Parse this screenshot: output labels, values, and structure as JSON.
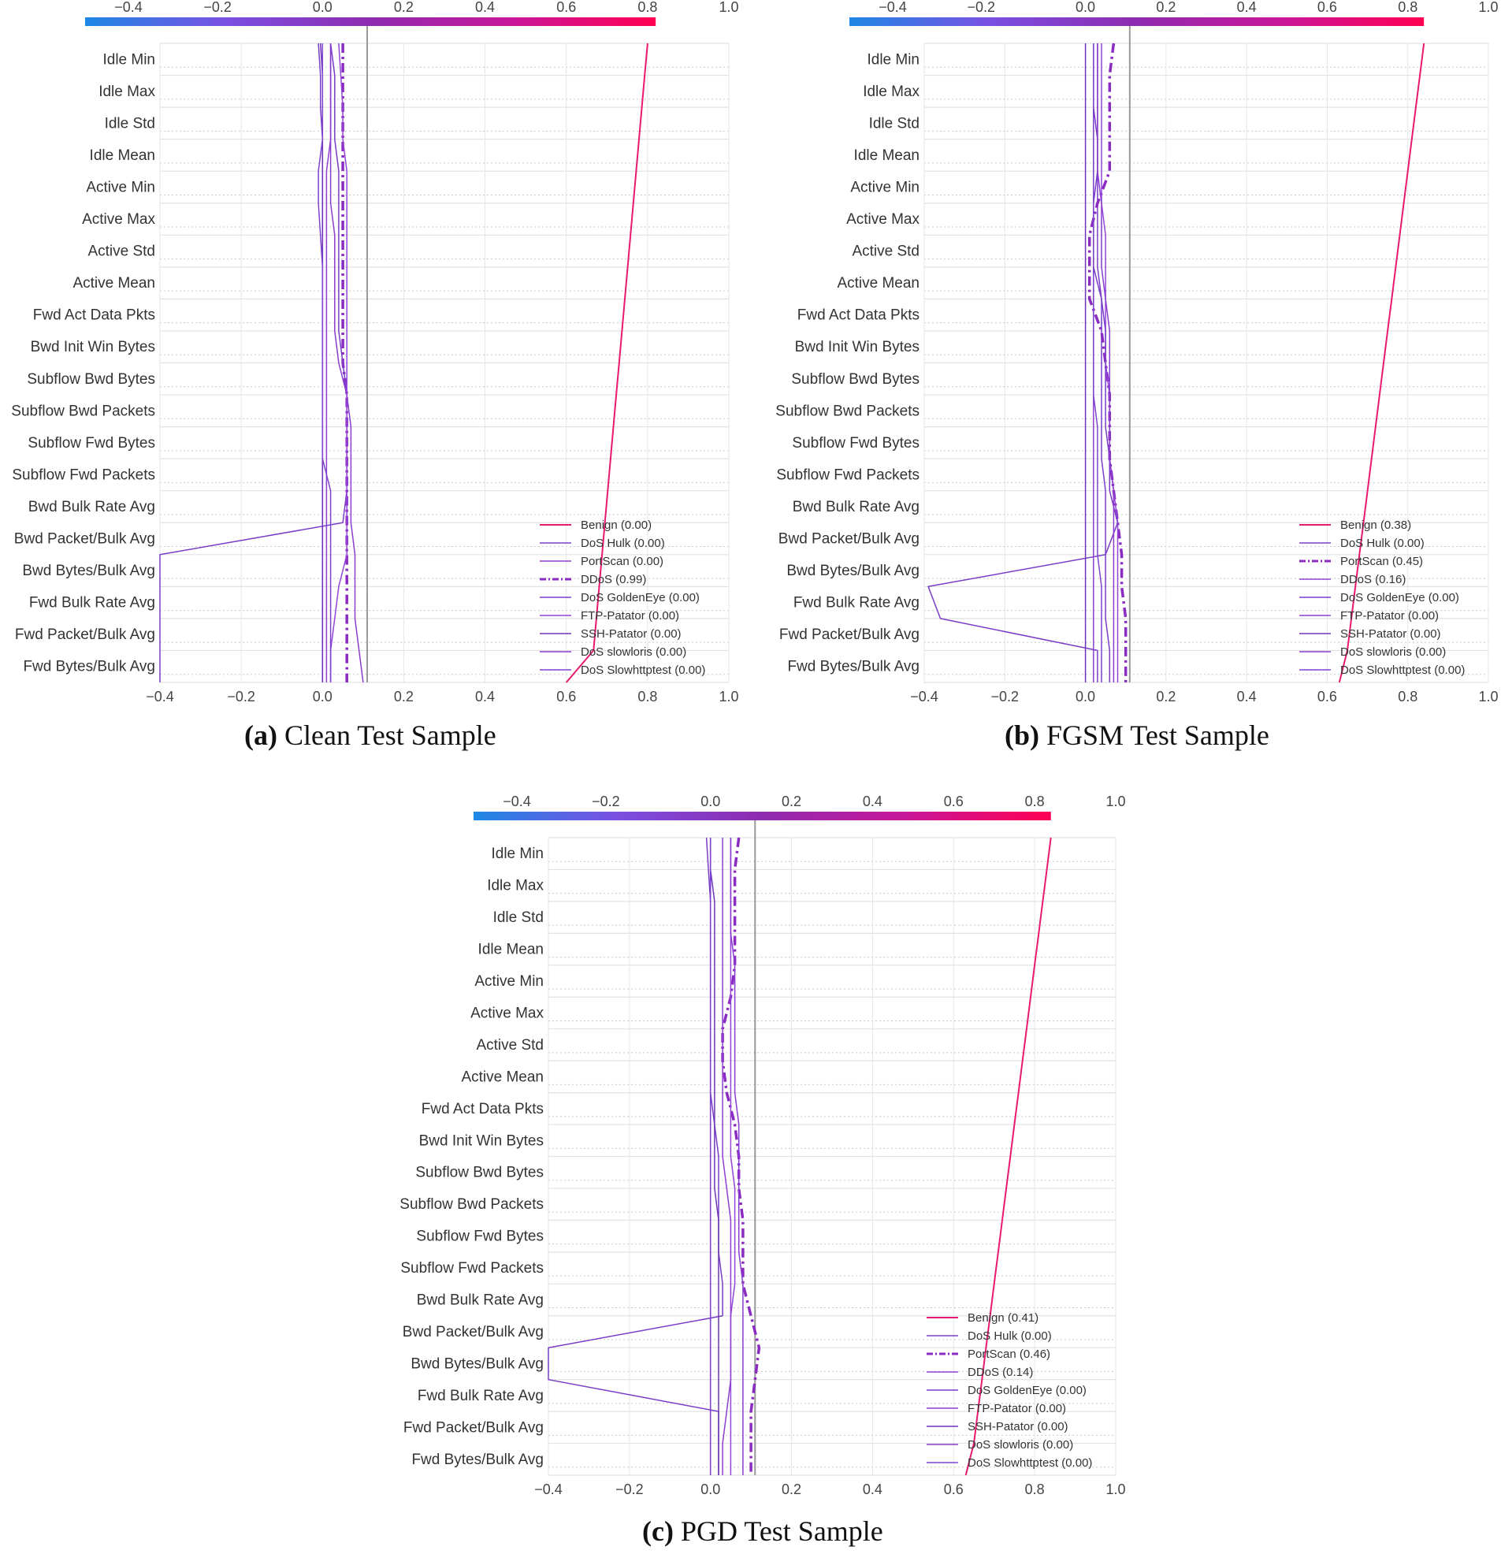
{
  "colors": {
    "colorbar": [
      "#1E88E5",
      "#7B4FE0",
      "#8E2BB0",
      "#C81699",
      "#FF0052"
    ],
    "line_main": "#7A3DC8",
    "line_benign": "#E8196F",
    "base_line": "#999999",
    "grid": "#DDDDDD"
  },
  "panels": [
    {
      "caption_label": "(a)",
      "caption_text": "Clean Test Sample"
    },
    {
      "caption_label": "(b)",
      "caption_text": "FGSM Test Sample"
    },
    {
      "caption_label": "(c)",
      "caption_text": "PGD Test Sample"
    }
  ],
  "chart_data": [
    {
      "type": "line",
      "title": "",
      "xlabel": "",
      "ylabel": "",
      "xlim": [
        -0.4,
        1.0
      ],
      "xticks": [
        "−0.4",
        "−0.2",
        "0.0",
        "0.2",
        "0.4",
        "0.6",
        "0.8",
        "1.0"
      ],
      "base_value": 0.11,
      "colorbar_range": [
        -0.4,
        0.82
      ],
      "features": [
        "Idle Min",
        "Idle Max",
        "Idle Std",
        "Idle Mean",
        "Active Min",
        "Active Max",
        "Active Std",
        "Active Mean",
        "Fwd Act Data Pkts",
        "Bwd Init Win Bytes",
        "Subflow Bwd Bytes",
        "Subflow Bwd Packets",
        "Subflow Fwd Bytes",
        "Subflow Fwd Packets",
        "Bwd Bulk Rate Avg",
        "Bwd Packet/Bulk Avg",
        "Bwd Bytes/Bulk Avg",
        "Fwd Bulk Rate Avg",
        "Fwd Packet/Bulk Avg",
        "Fwd Bytes/Bulk Avg"
      ],
      "legend_position": "lower-right",
      "series": [
        {
          "name": "Benign (0.00)",
          "color": "#E8196F",
          "dash": "",
          "width": 2,
          "values": [
            0.8,
            0.793,
            0.786,
            0.779,
            0.772,
            0.765,
            0.758,
            0.751,
            0.744,
            0.737,
            0.73,
            0.723,
            0.716,
            0.709,
            0.702,
            0.695,
            0.688,
            0.681,
            0.674,
            0.667,
            0.6
          ]
        },
        {
          "name": "DoS Hulk (0.00)",
          "color": "#7A3DC8",
          "dash": "",
          "width": 1.5,
          "values": [
            -0.01,
            -0.005,
            -0.005,
            0.0,
            0.0,
            0.0,
            0.0,
            0.0,
            0.0,
            0.0,
            0.0,
            0.0,
            0.0,
            0.0,
            0.0,
            0.0,
            0.0,
            0.0,
            0.0,
            0.0,
            0.0
          ]
        },
        {
          "name": "PortScan (0.00)",
          "color": "#8E3FD0",
          "dash": "",
          "width": 1.5,
          "values": [
            0.02,
            0.02,
            0.02,
            0.02,
            0.01,
            0.01,
            0.01,
            0.01,
            0.01,
            0.01,
            0.01,
            0.01,
            0.01,
            0.01,
            0.01,
            0.01,
            0.01,
            0.01,
            0.01,
            0.01,
            0.01
          ]
        },
        {
          "name": "DDoS (0.99)",
          "color": "#8A2BC2",
          "dash": "12,5,3,5",
          "width": 3.5,
          "values": [
            0.05,
            0.05,
            0.05,
            0.05,
            0.05,
            0.05,
            0.05,
            0.05,
            0.05,
            0.05,
            0.05,
            0.06,
            0.06,
            0.06,
            0.06,
            0.06,
            0.06,
            0.06,
            0.06,
            0.06,
            0.06
          ]
        },
        {
          "name": "DoS GoldenEye (0.00)",
          "color": "#7A3DC8",
          "dash": "",
          "width": 1.5,
          "values": [
            0.02,
            0.03,
            0.03,
            0.03,
            0.04,
            0.04,
            0.04,
            0.04,
            0.04,
            0.04,
            0.05,
            0.06,
            0.06,
            0.06,
            0.06,
            0.05,
            -0.4,
            -0.4,
            -0.4,
            -0.4,
            -0.4
          ]
        },
        {
          "name": "FTP-Patator (0.00)",
          "color": "#9445D8",
          "dash": "",
          "width": 1.5,
          "values": [
            0.04,
            0.045,
            0.05,
            0.05,
            0.06,
            0.06,
            0.06,
            0.06,
            0.06,
            0.06,
            0.06,
            0.06,
            0.06,
            0.06,
            0.06,
            0.06,
            0.06,
            0.04,
            0.03,
            0.02,
            0.02
          ]
        },
        {
          "name": "SSH-Patator (0.00)",
          "color": "#7035B8",
          "dash": "",
          "width": 1.5,
          "values": [
            -0.005,
            0.0,
            0.0,
            0.0,
            0.0,
            0.0,
            0.0,
            0.0,
            0.0,
            0.0,
            0.0,
            0.0,
            0.0,
            0.0,
            0.0,
            0.0,
            0.0,
            0.0,
            0.0,
            0.0,
            0.0
          ]
        },
        {
          "name": "DoS slowloris (0.00)",
          "color": "#8A3CD0",
          "dash": "",
          "width": 1.5,
          "values": [
            0.02,
            0.02,
            0.02,
            0.02,
            0.02,
            0.02,
            0.03,
            0.03,
            0.03,
            0.03,
            0.04,
            0.06,
            0.07,
            0.07,
            0.07,
            0.07,
            0.08,
            0.08,
            0.08,
            0.09,
            0.1
          ]
        },
        {
          "name": "DoS Slowhttptest (0.00)",
          "color": "#7E44D0",
          "dash": "",
          "width": 1.5,
          "values": [
            0.0,
            0.0,
            0.0,
            0.0,
            -0.01,
            -0.01,
            -0.005,
            0.0,
            0.0,
            0.0,
            0.0,
            0.0,
            0.0,
            0.0,
            0.02,
            0.02,
            0.02,
            0.02,
            0.02,
            0.02,
            0.02
          ]
        }
      ]
    },
    {
      "type": "line",
      "title": "",
      "xlabel": "",
      "ylabel": "",
      "xlim": [
        -0.4,
        1.0
      ],
      "xticks": [
        "−0.4",
        "−0.2",
        "0.0",
        "0.2",
        "0.4",
        "0.6",
        "0.8",
        "1.0"
      ],
      "base_value": 0.11,
      "colorbar_range": [
        -0.4,
        0.84
      ],
      "features": [
        "Idle Min",
        "Idle Max",
        "Idle Std",
        "Idle Mean",
        "Active Min",
        "Active Max",
        "Active Std",
        "Active Mean",
        "Fwd Act Data Pkts",
        "Bwd Init Win Bytes",
        "Subflow Bwd Bytes",
        "Subflow Bwd Packets",
        "Subflow Fwd Bytes",
        "Subflow Fwd Packets",
        "Bwd Bulk Rate Avg",
        "Bwd Packet/Bulk Avg",
        "Bwd Bytes/Bulk Avg",
        "Fwd Bulk Rate Avg",
        "Fwd Packet/Bulk Avg",
        "Fwd Bytes/Bulk Avg"
      ],
      "legend_position": "lower-right",
      "series": [
        {
          "name": "Benign (0.38)",
          "color": "#E8196F",
          "dash": "",
          "width": 2,
          "values": [
            0.84,
            0.83,
            0.82,
            0.81,
            0.8,
            0.79,
            0.78,
            0.77,
            0.76,
            0.75,
            0.74,
            0.73,
            0.72,
            0.71,
            0.7,
            0.69,
            0.68,
            0.67,
            0.66,
            0.65,
            0.63
          ]
        },
        {
          "name": "DoS Hulk (0.00)",
          "color": "#7A3DC8",
          "dash": "",
          "width": 1.5,
          "values": [
            0.02,
            0.02,
            0.02,
            0.03,
            0.03,
            0.03,
            0.03,
            0.03,
            0.04,
            0.04,
            0.04,
            0.04,
            0.04,
            0.04,
            0.05,
            0.05,
            0.05,
            0.05,
            0.05,
            0.06,
            0.06
          ]
        },
        {
          "name": "PortScan (0.45)",
          "color": "#8A2BC2",
          "dash": "12,5,3,5",
          "width": 3.5,
          "values": [
            0.07,
            0.06,
            0.06,
            0.06,
            0.06,
            0.03,
            0.01,
            0.01,
            0.01,
            0.04,
            0.05,
            0.06,
            0.06,
            0.06,
            0.07,
            0.08,
            0.09,
            0.09,
            0.1,
            0.1,
            0.1
          ]
        },
        {
          "name": "DDoS (0.16)",
          "color": "#9445D8",
          "dash": "",
          "width": 1.5,
          "values": [
            0.04,
            0.04,
            0.04,
            0.04,
            0.04,
            0.04,
            0.05,
            0.05,
            0.05,
            0.05,
            0.05,
            0.06,
            0.06,
            0.06,
            0.07,
            0.08,
            0.08,
            0.08,
            0.08,
            0.08,
            0.08
          ]
        },
        {
          "name": "DoS GoldenEye (0.00)",
          "color": "#7A3DC8",
          "dash": "",
          "width": 1.5,
          "values": [
            0.03,
            0.03,
            0.03,
            0.03,
            0.03,
            0.02,
            0.02,
            0.02,
            0.04,
            0.05,
            0.05,
            0.05,
            0.05,
            0.06,
            0.06,
            0.08,
            0.05,
            -0.39,
            -0.36,
            0.03,
            0.03
          ]
        },
        {
          "name": "FTP-Patator (0.00)",
          "color": "#8E3FD0",
          "dash": "",
          "width": 1.5,
          "values": [
            0.02,
            0.02,
            0.02,
            0.02,
            0.02,
            0.02,
            0.02,
            0.02,
            0.02,
            0.02,
            0.02,
            0.02,
            0.02,
            0.02,
            0.02,
            0.02,
            0.02,
            0.02,
            0.02,
            0.02,
            0.02
          ]
        },
        {
          "name": "SSH-Patator (0.00)",
          "color": "#7035B8",
          "dash": "",
          "width": 1.5,
          "values": [
            0.0,
            0.0,
            0.0,
            0.0,
            0.0,
            0.0,
            0.0,
            0.0,
            0.0,
            0.0,
            0.0,
            0.0,
            0.0,
            0.0,
            0.0,
            0.0,
            0.0,
            0.0,
            0.0,
            0.0,
            0.0
          ]
        },
        {
          "name": "DoS slowloris (0.00)",
          "color": "#8A3CD0",
          "dash": "",
          "width": 1.5,
          "values": [
            0.03,
            0.03,
            0.03,
            0.03,
            0.03,
            0.04,
            0.04,
            0.04,
            0.05,
            0.06,
            0.06,
            0.06,
            0.06,
            0.06,
            0.07,
            0.07,
            0.07,
            0.07,
            0.07,
            0.07,
            0.07
          ]
        },
        {
          "name": "DoS Slowhttptest (0.00)",
          "color": "#7E44D0",
          "dash": "",
          "width": 1.5,
          "values": [
            0.02,
            0.02,
            0.02,
            0.02,
            0.02,
            0.02,
            0.02,
            0.02,
            0.02,
            0.02,
            0.02,
            0.02,
            0.03,
            0.03,
            0.03,
            0.03,
            0.03,
            0.04,
            0.04,
            0.04,
            0.04
          ]
        }
      ]
    },
    {
      "type": "line",
      "title": "",
      "xlabel": "",
      "ylabel": "",
      "xlim": [
        -0.4,
        1.0
      ],
      "xticks": [
        "−0.4",
        "−0.2",
        "0.0",
        "0.2",
        "0.4",
        "0.6",
        "0.8",
        "1.0"
      ],
      "base_value": 0.11,
      "colorbar_range": [
        -0.4,
        0.84
      ],
      "features": [
        "Idle Min",
        "Idle Max",
        "Idle Std",
        "Idle Mean",
        "Active Min",
        "Active Max",
        "Active Std",
        "Active Mean",
        "Fwd Act Data Pkts",
        "Bwd Init Win Bytes",
        "Subflow Bwd Bytes",
        "Subflow Bwd Packets",
        "Subflow Fwd Bytes",
        "Subflow Fwd Packets",
        "Bwd Bulk Rate Avg",
        "Bwd Packet/Bulk Avg",
        "Bwd Bytes/Bulk Avg",
        "Fwd Bulk Rate Avg",
        "Fwd Packet/Bulk Avg",
        "Fwd Bytes/Bulk Avg"
      ],
      "legend_position": "lower-right",
      "series": [
        {
          "name": "Benign (0.41)",
          "color": "#E8196F",
          "dash": "",
          "width": 2,
          "values": [
            0.84,
            0.83,
            0.82,
            0.81,
            0.8,
            0.79,
            0.78,
            0.77,
            0.76,
            0.75,
            0.74,
            0.73,
            0.72,
            0.71,
            0.7,
            0.69,
            0.68,
            0.67,
            0.66,
            0.65,
            0.63
          ]
        },
        {
          "name": "DoS Hulk (0.00)",
          "color": "#7A3DC8",
          "dash": "",
          "width": 1.5,
          "values": [
            -0.01,
            -0.005,
            0.0,
            0.0,
            0.0,
            0.0,
            0.0,
            0.0,
            0.0,
            0.0,
            0.0,
            0.0,
            0.0,
            0.0,
            0.0,
            0.0,
            0.0,
            0.0,
            0.0,
            0.0,
            0.0
          ]
        },
        {
          "name": "PortScan (0.46)",
          "color": "#8A2BC2",
          "dash": "12,5,3,5",
          "width": 3.5,
          "values": [
            0.07,
            0.06,
            0.06,
            0.06,
            0.06,
            0.05,
            0.03,
            0.03,
            0.04,
            0.06,
            0.07,
            0.07,
            0.08,
            0.08,
            0.08,
            0.1,
            0.12,
            0.11,
            0.1,
            0.1,
            0.1
          ]
        },
        {
          "name": "DDoS (0.14)",
          "color": "#9445D8",
          "dash": "",
          "width": 1.5,
          "values": [
            0.05,
            0.05,
            0.05,
            0.05,
            0.05,
            0.05,
            0.05,
            0.05,
            0.05,
            0.05,
            0.05,
            0.06,
            0.06,
            0.06,
            0.06,
            0.05,
            0.05,
            0.05,
            0.05,
            0.05,
            0.05
          ]
        },
        {
          "name": "DoS GoldenEye (0.00)",
          "color": "#7A3DC8",
          "dash": "",
          "width": 1.5,
          "values": [
            0.0,
            0.0,
            0.0,
            0.0,
            0.0,
            0.0,
            0.0,
            0.0,
            0.0,
            0.01,
            0.02,
            0.02,
            0.02,
            0.02,
            0.03,
            0.03,
            -0.4,
            -0.4,
            0.02,
            0.02,
            0.02
          ]
        },
        {
          "name": "FTP-Patator (0.00)",
          "color": "#8E3FD0",
          "dash": "",
          "width": 1.5,
          "values": [
            0.03,
            0.03,
            0.03,
            0.03,
            0.03,
            0.03,
            0.03,
            0.03,
            0.03,
            0.03,
            0.03,
            0.04,
            0.05,
            0.05,
            0.05,
            0.05,
            0.05,
            0.05,
            0.04,
            0.03,
            0.03
          ]
        },
        {
          "name": "SSH-Patator (0.00)",
          "color": "#7035B8",
          "dash": "",
          "width": 1.5,
          "values": [
            0.0,
            0.0,
            0.01,
            0.01,
            0.01,
            0.01,
            0.01,
            0.01,
            0.01,
            0.01,
            0.01,
            0.01,
            0.02,
            0.02,
            0.02,
            0.02,
            0.02,
            0.02,
            0.02,
            0.02,
            0.02
          ]
        },
        {
          "name": "DoS slowloris (0.00)",
          "color": "#8A3CD0",
          "dash": "",
          "width": 1.5,
          "values": [
            0.05,
            0.05,
            0.05,
            0.05,
            0.06,
            0.06,
            0.06,
            0.06,
            0.06,
            0.07,
            0.07,
            0.07,
            0.07,
            0.07,
            0.08,
            0.08,
            0.08,
            0.08,
            0.08,
            0.08,
            0.08
          ]
        },
        {
          "name": "DoS Slowhttptest (0.00)",
          "color": "#7E44D0",
          "dash": "",
          "width": 1.5,
          "values": [
            0.0,
            0.0,
            0.0,
            0.0,
            0.0,
            0.0,
            0.0,
            0.0,
            0.0,
            0.0,
            0.0,
            0.0,
            0.0,
            0.0,
            0.0,
            0.0,
            0.0,
            0.0,
            0.0,
            0.0,
            0.0
          ]
        }
      ]
    }
  ]
}
